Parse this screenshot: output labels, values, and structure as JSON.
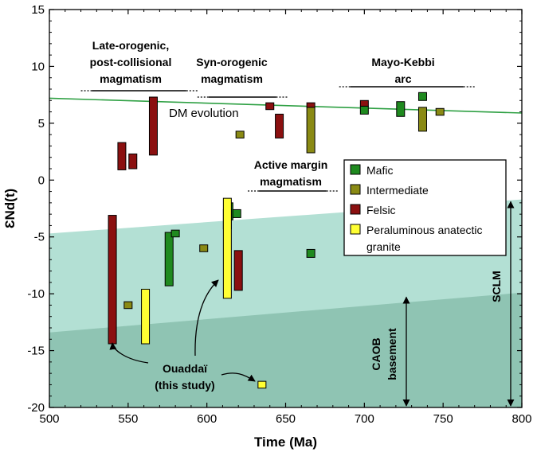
{
  "chart_data": {
    "type": "bar",
    "xlabel": "Time (Ma)",
    "ylabel": "ƐNd(t)",
    "xlim": [
      500,
      800
    ],
    "ylim": [
      -20,
      15
    ],
    "xticks": [
      500,
      550,
      600,
      650,
      700,
      750,
      800
    ],
    "yticks": [
      -20,
      -15,
      -10,
      -5,
      0,
      5,
      10,
      15
    ],
    "grid": false,
    "legend_position": "right",
    "colors": {
      "Mafic": "#1f8a1f",
      "Intermediate": "#8a8a14",
      "Felsic": "#8b1010",
      "Peraluminous anatectic granite": "#ffff33",
      "scl_band": "#b3e0d4",
      "caob_band": "#8fc4b3",
      "dm_line": "#2ea043"
    },
    "legend": [
      {
        "key": "Mafic",
        "label": "Mafic"
      },
      {
        "key": "Intermediate",
        "label": "Intermediate"
      },
      {
        "key": "Felsic",
        "label": "Felsic"
      },
      {
        "key": "Peraluminous anatectic granite",
        "label_lines": [
          "Peraluminous anatectic",
          "granite"
        ]
      }
    ],
    "series": [
      {
        "name": "Mafic",
        "bars": [
          {
            "x": 576,
            "y_min": -9.3,
            "y_max": -4.6
          },
          {
            "x": 580,
            "y_min": -5.0,
            "y_max": -4.4
          },
          {
            "x": 614,
            "y_min": -3.5,
            "y_max": -2.0
          },
          {
            "x": 619,
            "y_min": -3.3,
            "y_max": -2.6
          },
          {
            "x": 666,
            "y_min": -6.8,
            "y_max": -6.1
          },
          {
            "x": 700,
            "y_min": 5.8,
            "y_max": 6.5
          },
          {
            "x": 723,
            "y_min": 5.6,
            "y_max": 6.9
          },
          {
            "x": 737,
            "y_min": 7.0,
            "y_max": 7.7
          }
        ]
      },
      {
        "name": "Intermediate",
        "bars": [
          {
            "x": 550,
            "y_min": -11.3,
            "y_max": -10.7
          },
          {
            "x": 598,
            "y_min": -6.3,
            "y_max": -5.7
          },
          {
            "x": 613,
            "y_min": -4.3,
            "y_max": -2.6
          },
          {
            "x": 621,
            "y_min": 3.7,
            "y_max": 4.3
          },
          {
            "x": 666,
            "y_min": 2.4,
            "y_max": 6.4
          },
          {
            "x": 737,
            "y_min": 4.3,
            "y_max": 6.4
          },
          {
            "x": 748,
            "y_min": 5.7,
            "y_max": 6.3
          }
        ]
      },
      {
        "name": "Felsic",
        "bars": [
          {
            "x": 540,
            "y_min": -14.4,
            "y_max": -3.1
          },
          {
            "x": 546,
            "y_min": 0.9,
            "y_max": 3.3
          },
          {
            "x": 553,
            "y_min": 1.0,
            "y_max": 2.3
          },
          {
            "x": 566,
            "y_min": 2.2,
            "y_max": 7.3
          },
          {
            "x": 620,
            "y_min": -9.7,
            "y_max": -6.2
          },
          {
            "x": 640,
            "y_min": 6.2,
            "y_max": 6.8
          },
          {
            "x": 646,
            "y_min": 3.7,
            "y_max": 5.8
          },
          {
            "x": 666,
            "y_min": 6.4,
            "y_max": 6.8
          },
          {
            "x": 700,
            "y_min": 6.5,
            "y_max": 7.0
          }
        ]
      },
      {
        "name": "Peraluminous anatectic granite",
        "bars": [
          {
            "x": 561,
            "y_min": -14.4,
            "y_max": -9.6
          },
          {
            "x": 613,
            "y_min": -10.4,
            "y_max": -1.6
          },
          {
            "x": 635,
            "y_min": -18.3,
            "y_max": -17.7
          }
        ]
      }
    ],
    "dm_evolution": {
      "label": "DM evolution",
      "x": [
        500,
        800
      ],
      "y": [
        7.2,
        5.9
      ]
    },
    "scl_band": {
      "x": [
        500,
        800
      ],
      "y_upper": [
        -4.7,
        -1.7
      ]
    },
    "caob_band": {
      "x": [
        500,
        800
      ],
      "y_upper": [
        -13.4,
        -9.9
      ]
    },
    "annotations": {
      "late_orogenic": {
        "lines": [
          "Late-orogenic,",
          "post-collisional",
          "magmatism"
        ],
        "x_range": [
          520,
          594
        ]
      },
      "syn_orogenic": {
        "lines": [
          "Syn-orogenic",
          "magmatism"
        ],
        "x_range": [
          594,
          651
        ]
      },
      "mayo_kebbi": {
        "lines": [
          "Mayo-Kebbi",
          "arc"
        ],
        "x_range": [
          684,
          770
        ]
      },
      "active_margin": {
        "lines": [
          "Active margin",
          "magmatism"
        ],
        "x_range": [
          626,
          683
        ]
      },
      "ouaddai": {
        "lines": [
          "Ouaddaï",
          "(this study)"
        ]
      },
      "caob": {
        "lines": [
          "CAOB",
          "basement"
        ],
        "y_range": [
          -20,
          -10.3
        ]
      },
      "sclm": {
        "label": "SCLM",
        "y_range": [
          -20,
          -1.9
        ]
      }
    }
  }
}
